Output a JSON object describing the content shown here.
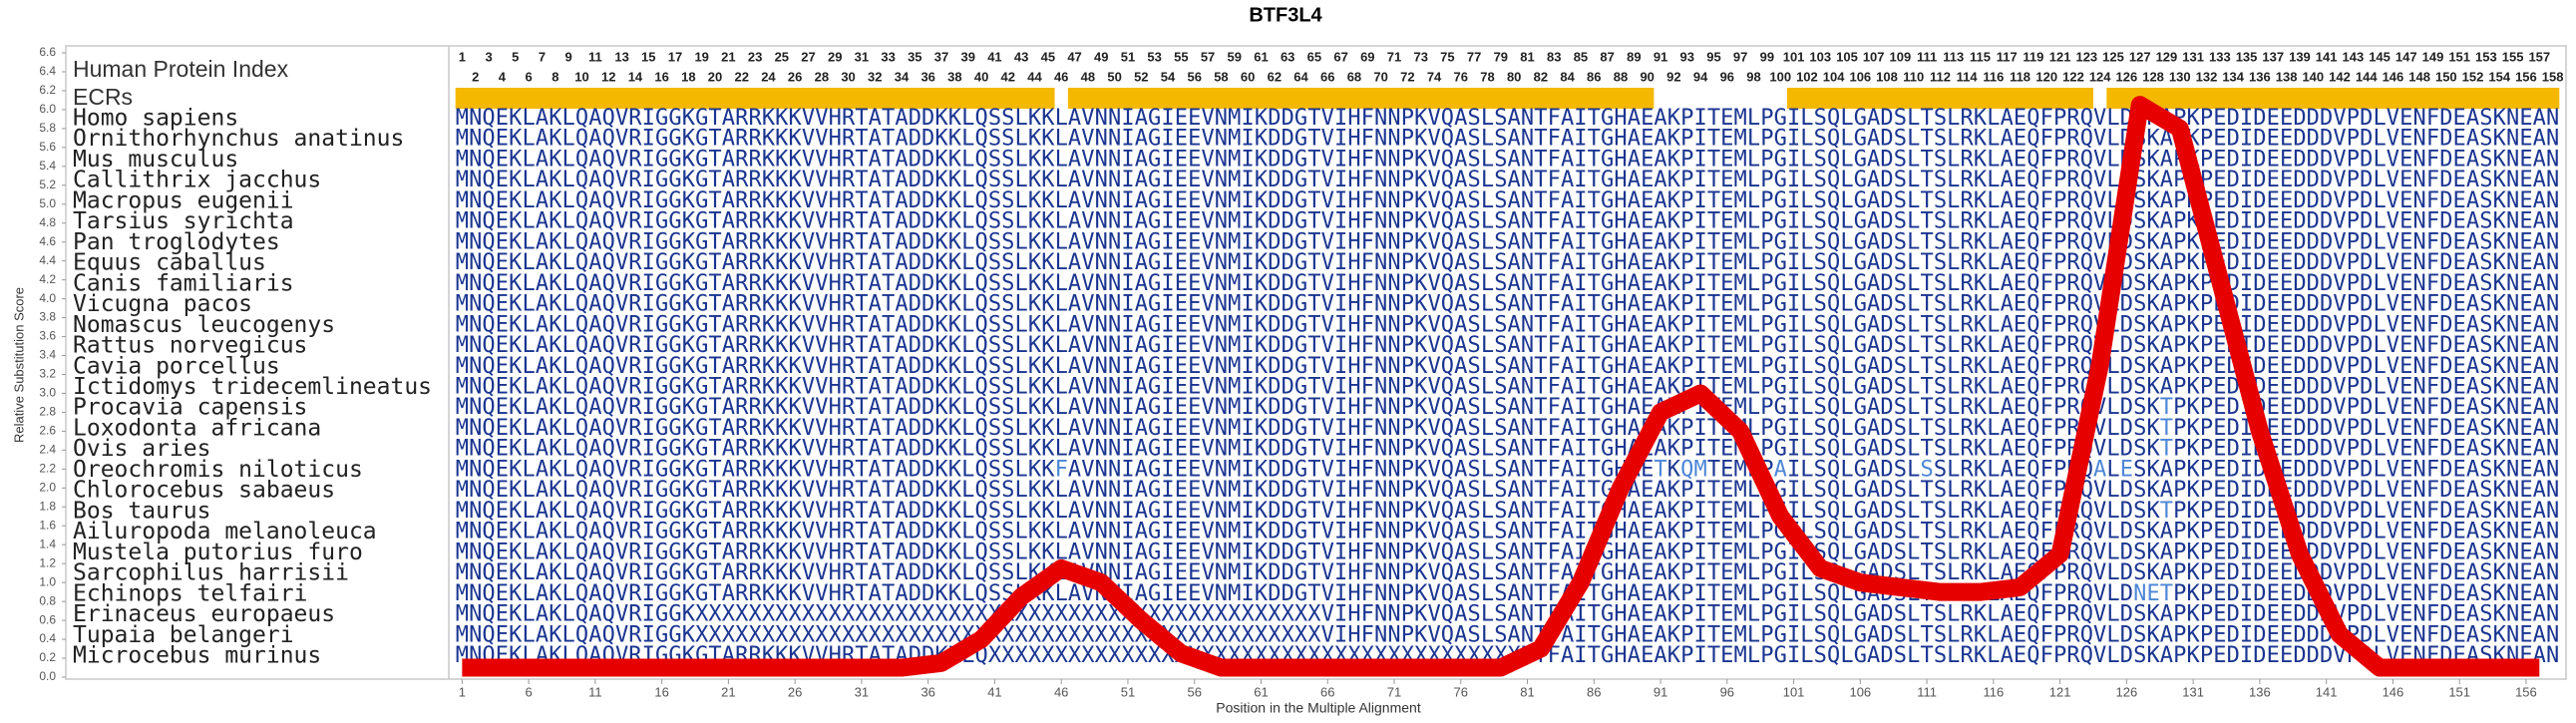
{
  "chart_data": {
    "type": "line",
    "title": "BTF3L4",
    "y_label": "Relative Substitution Score",
    "x_label": "Position in the Multiple Alignment",
    "index_label": "Human Protein Index",
    "ecr_label": "ECRs",
    "ecr_color": "#f5b800",
    "color": "#e60000",
    "xlim": [
      0,
      159
    ],
    "ylim": [
      0,
      6.6
    ],
    "xticks": [
      1,
      6,
      11,
      16,
      21,
      26,
      31,
      36,
      41,
      46,
      51,
      56,
      61,
      66,
      71,
      76,
      81,
      86,
      91,
      96,
      101,
      106,
      111,
      116,
      121,
      126,
      131,
      136,
      141,
      146,
      151,
      156
    ],
    "yticks": [
      {
        "value": 0,
        "label": "0.0"
      },
      0.2,
      0.4,
      0.6,
      0.8,
      {
        "value": 1,
        "label": "1.0"
      },
      1.2,
      1.4,
      1.6,
      1.8,
      {
        "value": 2,
        "label": "2.0"
      },
      2.2,
      2.4,
      2.6,
      2.8,
      {
        "value": 3,
        "label": "3.0"
      },
      3.2,
      3.4,
      3.6,
      3.8,
      {
        "value": 4,
        "label": "4.0"
      },
      4.2,
      4.4,
      4.6,
      4.8,
      {
        "value": 5,
        "label": "5.0"
      },
      5.2,
      5.4,
      5.6,
      5.8,
      {
        "value": 6,
        "label": "6.0"
      },
      6.2,
      6.4,
      6.6
    ],
    "human_index": [
      1,
      2,
      3,
      4,
      5,
      6,
      7,
      8,
      9,
      10,
      11,
      12,
      13,
      14,
      15,
      16,
      17,
      18,
      19,
      20,
      21,
      22,
      23,
      24,
      25,
      26,
      27,
      28,
      29,
      30,
      31,
      32,
      33,
      34,
      35,
      36,
      37,
      38,
      39,
      40,
      41,
      42,
      43,
      44,
      45,
      46,
      47,
      48,
      49,
      50,
      51,
      52,
      53,
      54,
      55,
      56,
      57,
      58,
      59,
      60,
      61,
      62,
      63,
      64,
      65,
      66,
      67,
      68,
      69,
      70,
      71,
      72,
      73,
      74,
      75,
      76,
      77,
      78,
      79,
      80,
      81,
      82,
      83,
      84,
      85,
      86,
      87,
      88,
      89,
      90,
      91,
      92,
      93,
      94,
      95,
      96,
      97,
      98,
      99,
      100,
      101,
      102,
      103,
      104,
      105,
      106,
      107,
      108,
      109,
      110,
      111,
      112,
      113,
      114,
      115,
      116,
      117,
      118,
      119,
      120,
      121,
      122,
      123,
      124,
      125,
      126,
      127,
      128,
      129,
      130,
      131,
      132,
      133,
      134,
      135,
      136,
      137,
      138,
      139,
      140,
      141,
      142,
      143,
      144,
      145,
      146,
      147,
      148,
      149,
      150,
      151,
      152,
      153,
      154,
      155,
      156,
      157,
      158
    ],
    "ecrs": [
      [
        1,
        45
      ],
      [
        47,
        90
      ],
      [
        101,
        123
      ],
      [
        125,
        158
      ]
    ],
    "species": [
      {
        "name": "Homo sapiens",
        "sequence": "MNQEKLAKLQAQVRIGGKGTARRKKKVVHRTATADDKKLQSSLKKLAVNNIAGIEEVNMIKDDGTVIHFNNPKVQASLSANTFAITGHAEAKPITEMLPGILSQLGADSLTSLRKLAEQFPRQVLDSKAPKPEDIDEEDDDVPDLVENFDEASKNEAN"
      },
      {
        "name": "Ornithorhynchus anatinus",
        "sequence": "MNQEKLAKLQAQVRIGGKGTARRKKKVVHRTATADDKKLQSSLKKLAVNNIAGIEEVNMIKDDGTVIHFNNPKVQASLSANTFAITGHAEAKPITEMLPGILSQLGADSLTSLRKLAEQFPRQVLDSKAPKPEDIDEEDDDVPDLVENFDEASKNEAN"
      },
      {
        "name": "Mus musculus",
        "sequence": "MNQEKLAKLQAQVRIGGKGTARRKKKVVHRTATADDKKLQSSLKKLAVNNIAGIEEVNMIKDDGTVIHFNNPKVQASLSANTFAITGHAEAKPITEMLPGILSQLGADSLTSLRKLAEQFPRQVLDSKAPKPEDIDEEDDDVPDLVENFDEASKNEAN"
      },
      {
        "name": "Callithrix jacchus",
        "sequence": "MNQEKLAKLQAQVRIGGKGTARRKKKVVHRTATADDKKLQSSLKKLAVNNIAGIEEVNMIKDDGTVIHFNNPKVQASLSANTFAITGHAEAKPITEMLPGILSQLGADSLTSLRKLAEQFPRQVLDSKAPKPEDIDEEDDDVPDLVENFDEASKNEAN"
      },
      {
        "name": "Macropus eugenii",
        "sequence": "MNQEKLAKLQAQVRIGGKGTARRKKKVVHRTATADDKKLQSSLKKLAVNNIAGIEEVNMIKDDGTVIHFNNPKVQASLSANTFAITGHAEAKPITEMLPGILSQLGADSLTSLRKLAEQFPRQVLDSKAPKPEDIDEEDDDVPDLVENFDEASKNEAN"
      },
      {
        "name": "Tarsius syrichta",
        "sequence": "MNQEKLAKLQAQVRIGGKGTARRKKKVVHRTATADDKKLQSSLKKLAVNNIAGIEEVNMIKDDGTVIHFNNPKVQASLSANTFAITGHAEAKPITEMLPGILSQLGADSLTSLRKLAEQFPRQVLDSKAPKPEDIDEEDDDVPDLVENFDEASKNEAN"
      },
      {
        "name": "Pan troglodytes",
        "sequence": "MNQEKLAKLQAQVRIGGKGTARRKKKVVHRTATADDKKLQSSLKKLAVNNIAGIEEVNMIKDDGTVIHFNNPKVQASLSANTFAITGHAEAKPITEMLPGILSQLGADSLTSLRKLAEQFPRQVLDSKAPKPEDIDEEDDDVPDLVENFDEASKNEAN"
      },
      {
        "name": "Equus caballus",
        "sequence": "MNQEKLAKLQAQVRIGGKGTARRKKKVVHRTATADDKKLQSSLKKLAVNNIAGIEEVNMIKDDGTVIHFNNPKVQASLSANTFAITGHAEAKPITEMLPGILSQLGADSLTSLRKLAEQFPRQVLDSKAPKPEDIDEEDDDVPDLVENFDEASKNEAN"
      },
      {
        "name": "Canis familiaris",
        "sequence": "MNQEKLAKLQAQVRIGGKGTARRKKKVVHRTATADDKKLQSSLKKLAVNNIAGIEEVNMIKDDGTVIHFNNPKVQASLSANTFAITGHAEAKPITEMLPGILSQLGADSLTSLRKLAEQFPRQVLDSKAPKPEDIDEEDDDVPDLVENFDEASKNEAN"
      },
      {
        "name": "Vicugna pacos",
        "sequence": "MNQEKLAKLQAQVRIGGKGTARRKKKVVHRTATADDKKLQSSLKKLAVNNIAGIEEVNMIKDDGTVIHFNNPKVQASLSANTFAITGHAEAKPITEMLPGILSQLGADSLTSLRKLAEQFPRQVLDSKAPKPEDIDEEDDDVPDLVENFDEASKNEAN"
      },
      {
        "name": "Nomascus leucogenys",
        "sequence": "MNQEKLAKLQAQVRIGGKGTARRKKKVVHRTATADDKKLQSSLKKLAVNNIAGIEEVNMIKDDGTVIHFNNPKVQASLSANTFAITGHAEAKPITEMLPGILSQLGADSLTSLRKLAEQFPRQVLDSKAPKPEDIDEEDDDVPDLVENFDEASKNEAN"
      },
      {
        "name": "Rattus norvegicus",
        "sequence": "MNQEKLAKLQAQVRIGGKGTARRKKKVVHRTATADDKKLQSSLKKLAVNNIAGIEEVNMIKDDGTVIHFNNPKVQASLSANTFAITGHAEAKPITEMLPGILSQLGADSLTSLRKLAEQFPRQVLDSKAPKPEDIDEEDDDVPDLVENFDEASKNEAN"
      },
      {
        "name": "Cavia porcellus",
        "sequence": "MNQEKLAKLQAQVRIGGKGTARRKKKVVHRTATADDKKLQSSLKKLAVNNIAGIEEVNMIKDDGTVIHFNNPKVQASLSANTFAITGHAEAKPITEMLPGILSQLGADSLTSLRKLAEQFPRQVLDSKAPKPEDIDEEDDDVPDLVENFDEASKNEAN"
      },
      {
        "name": "Ictidomys tridecemlineatus",
        "sequence": "MNQEKLAKLQAQVRIGGKGTARRKKKVVHRTATADDKKLQSSLKKLAVNNIAGIEEVNMIKDDGTVIHFNNPKVQASLSANTFAITGHAEAKPITEMLPGILSQLGADSLTSLRKLAEQFPRQVLDSKAPKPEDIDEEDDDVPDLVENFDEASKNEAN"
      },
      {
        "name": "Procavia capensis",
        "sequence": "MNQEKLAKLQAQVRIGGKGTARRKKKVVHRTATADDKKLQSSLKKLAVNNIAGIEEVNMIKDDGTVIHFNNPKVQASLSANTFAITGHAEAKPITEMLPGILSQLGADSLTSLRKLAEQFPRQVLDSKTPKPEDIDEEDDDVPDLVENFDEASKNEAN"
      },
      {
        "name": "Loxodonta africana",
        "sequence": "MNQEKLAKLQAQVRIGGKGTARRKKKVVHRTATADDKKLQSSLKKLAVNNIAGIEEVNMIKDDGTVIHFNNPKVQASLSANTFAITGHAEAKPITEMLPGILSQLGADSLTSLRKLAEQFPRQVLDSKTPKPEDIDEEDDDVPDLVENFDEASKNEAN"
      },
      {
        "name": "Ovis aries",
        "sequence": "MNQEKLAKLQAQVRIGGKGTARRKKKVVHRTATADDKKLQSSLKKLAVNNIAGIEEVNMIKDDGTVIHFNNPKVQASLSANTFAITGHAEAKPITEMLPGILSQLGADSLTSLRKLAEQFPRQVLDSKTPKPEDIDEEDDDVPDLVENFDEASKNEAN"
      },
      {
        "name": "Oreochromis niloticus",
        "sequence": "MNQEKLAKLQAQVRIGGKGTARRKKKVVHRTATADDKKLQSSLKKFAVNNIAGIEEVNMIKDDGTVIHFNNPKVQASLSANTFAITGHAETKQMTEMLPAILSQLGADSLSSLRKLAEQFPRQALESKAPKPEDIDEEDDDVPDLVENFDEASKNEAN"
      },
      {
        "name": "Chlorocebus sabaeus",
        "sequence": "MNQEKLAKLQAQVRIGGKGTARRKKKVVHRTATADDKKLQSSLKKLAVNNIAGIEEVNMIKDDGTVIHFNNPKVQASLSANTFAITGHAEAKPITEMLPGILSQLGADSLTSLRKLAEQFPRQVLDSKAPKPEDIDEEDDDVPDLVENFDEASKNEAN"
      },
      {
        "name": "Bos taurus",
        "sequence": "MNQEKLAKLQAQVRIGGKGTARRKKKVVHRTATADDKKLQSSLKKLAVNNIAGIEEVNMIKDDGTVIHFNNPKVQASLSANTFAITGHAEAKPITEMLPGILSQLGADSLTSLRKLAEQFPRQVLDSKTPKPEDIDEEDDDVPDLVENFDEASKNEAN"
      },
      {
        "name": "Ailuropoda melanoleuca",
        "sequence": "MNQEKLAKLQAQVRIGGKGTARRKKKVVHRTATADDKKLQSSLKKLAVNNIAGIEEVNMIKDDGTVIHFNNPKVQASLSANTFAITGHAEAKPITEMLPGILSQLGADSLTSLRKLAEQFPRQVLDSKAPKPEDIDEEDDDVPDLVENFDEASKNEAN"
      },
      {
        "name": "Mustela putorius furo",
        "sequence": "MNQEKLAKLQAQVRIGGKGTARRKKKVVHRTATADDKKLQSSLKKLAVNNIAGIEEVNMIKDDGTVIHFNNPKVQASLSANTFAITGHAEAKPITEMLPGILSQLGADSLTSLRKLAEQFPRQVLDSKAPKPEDIDEEDDDVPDLVENFDEASKNEAN"
      },
      {
        "name": "Sarcophilus harrisii",
        "sequence": "MNQEKLAKLQAQVRIGGKGTARRKKKVVHRTATADDKKLQSSLKKLAVNNIAGIEEVNMIKDDGTVIHFNNPKVQASLSANTFAITGHAEAKPITEMLPGILSQLGADSLTSLRKLAEQFPRQVLDSKAPKPEDIDEEDDDVPDLVENFDEASKNEAN"
      },
      {
        "name": "Echinops telfairi",
        "sequence": "MNQEKLAKLQAQVRIGGKGTARRKKKVVHRTATADDKKLQSSLKKLAVNNIAGIEEVNMIKDDGTVIHFNNPKVQASLSANTFAITGHAEAKPITEMLPGILSQLGADSLTSLRKLAEQFPRQVLDNETPKPEDIDEEDDDVPDLVENFDEASKNEAN"
      },
      {
        "name": "Erinaceus europaeus",
        "sequence": "MNQEKLAKLQAQVRIGGKXXXXXXXXXXXXXXXXXXXXXXXXXXXXXXXXXXXXXXXXXXXXXXXVIHFNNPKVQASLSANTFAITGHAEAKPITEMLPGILSQLGADSLTSLRKLAEQFPRQVLDSKAPKPEDIDEEDDDVPDLVENFDEASKNEAN"
      },
      {
        "name": "Tupaia belangeri",
        "sequence": "MNQEKLAKLQAQVRIGGKXXXXXXXXXXXXXXXXXXXXXXXXXXXXXXXXXXXXXXXXXXXXXXXVIHFNNPKVQASLSANTFAITGHAEAKPITEMLPGILSQLGADSLTSLRKLAEQFPRQVLDSKAPKPEDIDEEDDDVPDLVENFDEASKNEAN"
      },
      {
        "name": "Microcebus murinus",
        "sequence": "MNQEKLAKLQAQVRIGGKGTARRKKKVVHRTATADDKKLQXXXXXXXXXXXXXXXXXXXXXXXXXXXXXXXXXXXXXXXXNTFAITGHAEAKPITEMLPGILSQLGADSLTSLRKLAEQFPRQVLDSKAPKPEDIDEEDDDVPDLVENFDEASKNEAN"
      }
    ],
    "x": [
      1,
      4,
      7,
      10,
      13,
      16,
      19,
      22,
      25,
      28,
      31,
      34,
      37,
      40,
      43,
      46,
      49,
      52,
      55,
      58,
      61,
      64,
      67,
      70,
      73,
      76,
      79,
      82,
      85,
      88,
      91,
      94,
      97,
      100,
      103,
      106,
      109,
      112,
      115,
      118,
      121,
      124,
      127,
      130,
      133,
      136,
      139,
      142,
      145,
      148,
      151,
      154,
      157
    ],
    "values": [
      0.1,
      0.1,
      0.1,
      0.1,
      0.1,
      0.1,
      0.1,
      0.1,
      0.1,
      0.1,
      0.1,
      0.1,
      0.15,
      0.4,
      0.85,
      1.15,
      1.0,
      0.6,
      0.25,
      0.1,
      0.1,
      0.1,
      0.1,
      0.1,
      0.1,
      0.1,
      0.1,
      0.3,
      1.0,
      2.0,
      2.8,
      3.0,
      2.6,
      1.7,
      1.15,
      1.0,
      0.95,
      0.9,
      0.9,
      0.95,
      1.3,
      3.3,
      6.05,
      5.8,
      4.2,
      2.6,
      1.3,
      0.45,
      0.1,
      0.1,
      0.1,
      0.1,
      0.1
    ]
  }
}
